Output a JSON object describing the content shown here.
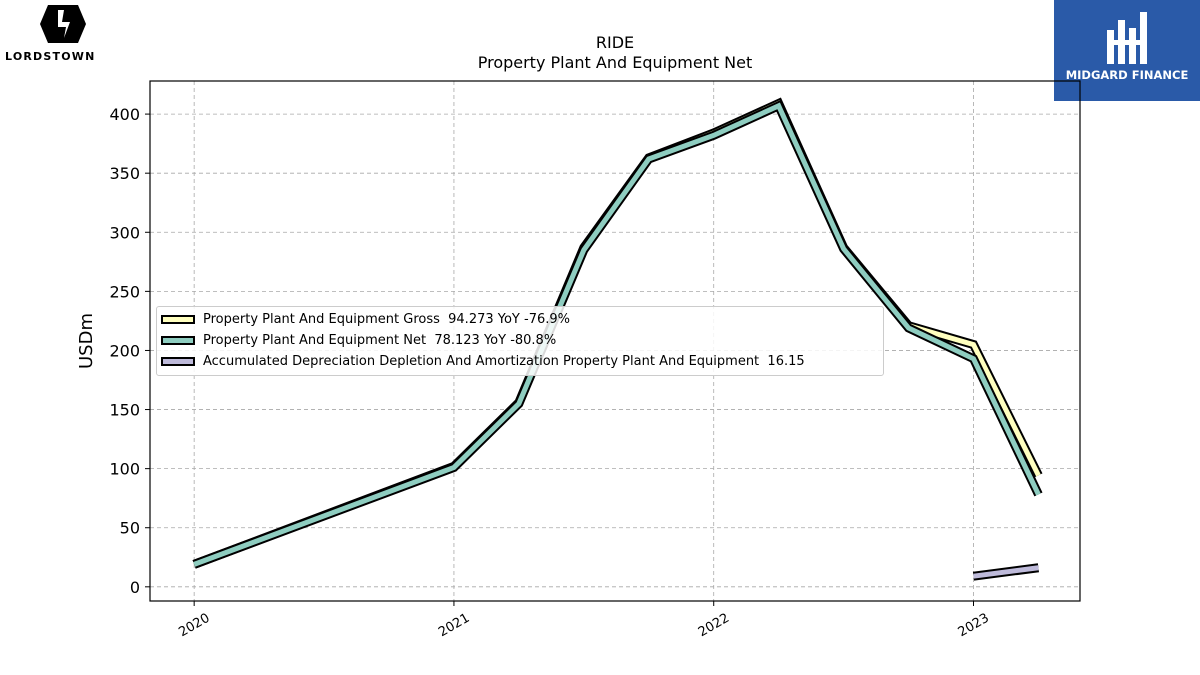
{
  "logos": {
    "left_brand": "LORDSTOWN",
    "right_brand": "MIDGARD FINANCE"
  },
  "chart_data": {
    "type": "line",
    "title": "RIDE",
    "subtitle": "Property Plant And Equipment Net",
    "ylabel": "USDm",
    "xlabel": "",
    "ylim": [
      -12,
      428
    ],
    "yticks": [
      0,
      50,
      100,
      150,
      200,
      250,
      300,
      350,
      400
    ],
    "xlim": [
      2019.83,
      2023.41
    ],
    "xticks": [
      {
        "value": 2020.0,
        "label": "2020"
      },
      {
        "value": 2021.0,
        "label": "2021"
      },
      {
        "value": 2022.0,
        "label": "2022"
      },
      {
        "value": 2023.0,
        "label": "2023"
      }
    ],
    "grid": true,
    "legend_position": "center-left",
    "series": [
      {
        "name": "Property Plant And Equipment Gross",
        "legend": "Property Plant And Equipment Gross  94.273 YoY -76.9%",
        "color": "#ffffbf",
        "x": [
          2020.0,
          2021.0,
          2021.25,
          2021.5,
          2021.75,
          2022.0,
          2022.25,
          2022.5,
          2022.75,
          2023.0,
          2023.25
        ],
        "y": [
          19,
          102,
          156,
          287,
          363,
          384,
          409,
          287,
          221,
          205,
          94.273
        ]
      },
      {
        "name": "Property Plant And Equipment Net",
        "legend": "Property Plant And Equipment Net  78.123 YoY -80.8%",
        "color": "#8ecdc0",
        "x": [
          2020.0,
          2021.0,
          2021.25,
          2021.5,
          2021.75,
          2022.0,
          2022.25,
          2022.5,
          2022.75,
          2023.0,
          2023.25
        ],
        "y": [
          19,
          101,
          155,
          285,
          362,
          382,
          407,
          286,
          219,
          193,
          78.123
        ]
      },
      {
        "name": "Accumulated Depreciation Depletion And Amortization Property Plant And Equipment",
        "legend": "Accumulated Depreciation Depletion And Amortization Property Plant And Equipment  16.15",
        "color": "#bebada",
        "x": [
          2023.0,
          2023.25
        ],
        "y": [
          9,
          16.15
        ]
      }
    ]
  }
}
